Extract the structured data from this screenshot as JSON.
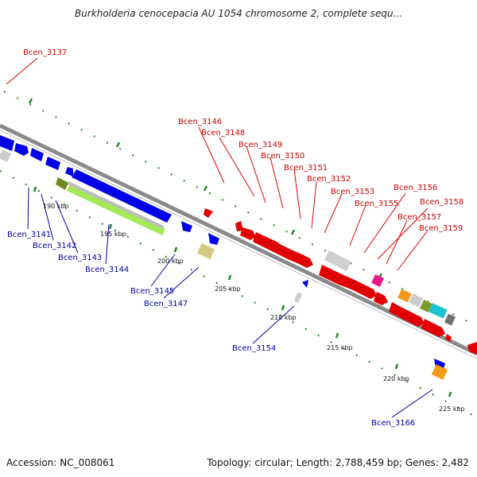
{
  "title": "Burkholderia cenocepacia AU 1054 chromosome 2, complete sequ...",
  "footer": {
    "accession": "Accession: NC_008061",
    "topology": "Topology: circular; Length: 2,788,459 bp; Genes: 2,482"
  },
  "colors": {
    "backbone": "#8a8a8a",
    "tick": "#1f8a1f",
    "forward_label": "#cc0000",
    "reverse_label": "#0000aa"
  },
  "scale_labels": [
    "190 kbp",
    "195 kbp",
    "200 kbp",
    "205 kbp",
    "210 kbp",
    "215 kbp",
    "220 kbp",
    "225 kbp"
  ],
  "forward_gene_labels": [
    "Bcen_3137",
    "Bcen_3146",
    "Bcen_3148",
    "Bcen_3149",
    "Bcen_3150",
    "Bcen_3151",
    "Bcen_3152",
    "Bcen_3153",
    "Bcen_3155",
    "Bcen_3156",
    "Bcen_3158",
    "Bcen_3157",
    "Bcen_3159"
  ],
  "reverse_gene_labels": [
    "Bcen_3141",
    "Bcen_3142",
    "Bcen_3143",
    "Bcen_3144",
    "Bcen_3145",
    "Bcen_3147",
    "Bcen_3154",
    "Bcen_3166"
  ]
}
